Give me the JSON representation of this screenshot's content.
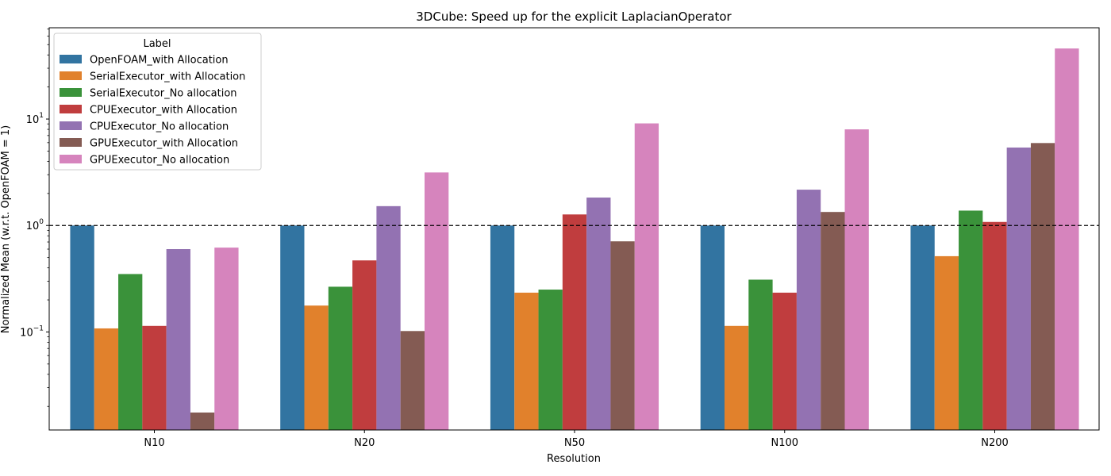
{
  "chart_data": {
    "type": "bar",
    "title": "3DCube: Speed up for the explicit LaplacianOperator",
    "xlabel": "Resolution",
    "ylabel": "Normalized Mean (w.r.t. OpenFOAM = 1)",
    "yscale": "log",
    "ylim": [
      0.012,
      72
    ],
    "grid": false,
    "reference_line": 1,
    "legend": {
      "title": "Label",
      "placement": "top-left"
    },
    "categories": [
      "N10",
      "N20",
      "N50",
      "N100",
      "N200"
    ],
    "series": [
      {
        "name": "OpenFOAM_with Allocation",
        "color": "#3274a1",
        "values": [
          1,
          1,
          1,
          1,
          1
        ]
      },
      {
        "name": "SerialExecutor_with Allocation",
        "color": "#e1812c",
        "values": [
          0.108,
          0.177,
          0.234,
          0.114,
          0.515
        ]
      },
      {
        "name": "SerialExecutor_No allocation",
        "color": "#3a923a",
        "values": [
          0.35,
          0.266,
          0.25,
          0.31,
          1.38
        ]
      },
      {
        "name": "CPUExecutor_with Allocation",
        "color": "#c03d3e",
        "values": [
          0.114,
          0.47,
          1.27,
          0.234,
          1.08
        ]
      },
      {
        "name": "CPUExecutor_No allocation",
        "color": "#9372b2",
        "values": [
          0.6,
          1.52,
          1.83,
          2.17,
          5.4
        ]
      },
      {
        "name": "GPUExecutor_with Allocation",
        "color": "#845b53",
        "values": [
          0.0175,
          0.102,
          0.71,
          1.34,
          5.95
        ]
      },
      {
        "name": "GPUExecutor_No allocation",
        "color": "#d684bd",
        "values": [
          0.62,
          3.15,
          9.1,
          8.0,
          46.0
        ]
      }
    ],
    "y_ticks": [
      {
        "value": 0.1,
        "base": "10",
        "exp": "−1"
      },
      {
        "value": 1,
        "base": "10",
        "exp": "0"
      },
      {
        "value": 10,
        "base": "10",
        "exp": "1"
      }
    ]
  }
}
